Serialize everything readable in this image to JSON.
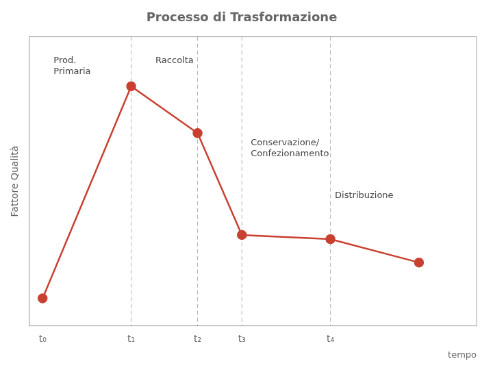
{
  "chart_data": {
    "type": "line",
    "title": "Processo di Trasformazione",
    "xlabel": "tempo",
    "ylabel": "Fattore Qualità",
    "x": [
      0,
      2,
      3.5,
      4.5,
      6.5,
      8.5
    ],
    "values": [
      0.05,
      0.82,
      0.65,
      0.28,
      0.265,
      0.18
    ],
    "color": "#c94030",
    "marker": "circle",
    "xlim": [
      -0.3,
      9.8
    ],
    "ylim": [
      -0.05,
      1.0
    ],
    "xticks": [
      {
        "value": 0,
        "label": "t₀"
      },
      {
        "value": 2,
        "label": "t₁"
      },
      {
        "value": 3.5,
        "label": "t₂"
      },
      {
        "value": 4.5,
        "label": "t₃"
      },
      {
        "value": 6.5,
        "label": "t₄"
      }
    ],
    "vlines": [
      2,
      3.5,
      4.5,
      6.5
    ],
    "annotations": [
      {
        "text": "Prod.\nPrimaria",
        "x": 0.25,
        "y": 0.93
      },
      {
        "text": "Raccolta",
        "x": 2.55,
        "y": 0.93
      },
      {
        "text": "Conservazione/\nConfezionamento",
        "x": 4.7,
        "y": 0.63
      },
      {
        "text": "Distribuzione",
        "x": 6.6,
        "y": 0.44
      }
    ],
    "tick_labels": "x",
    "grid": false
  }
}
